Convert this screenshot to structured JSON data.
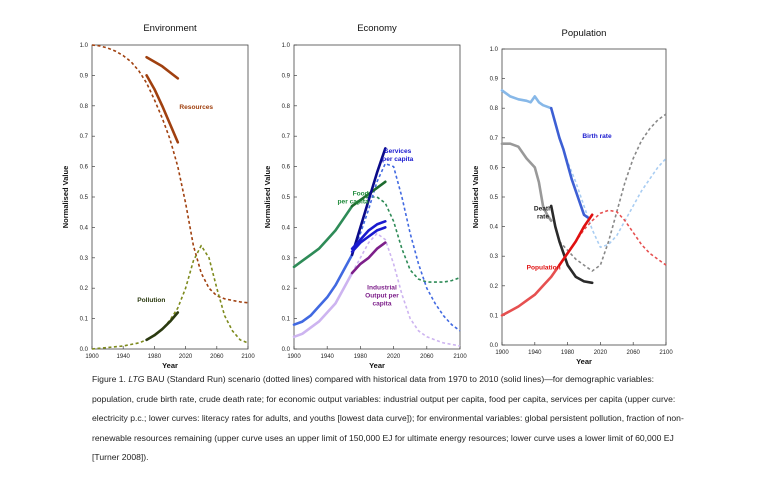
{
  "figure": {
    "caption_label": "Figure 1. ",
    "caption_italic": "LTG",
    "caption_text": " BAU (Standard Run) scenario (dotted lines) compared with historical data from 1970 to 2010 (solid lines)—for demographic variables: population, crude birth rate, crude death rate; for economic output variables:  industrial output per capita, food per capita, services per capita (upper curve: electricity p.c.; lower curves: literacy rates for adults, and youths [lowest data curve]); for environmental variables: global persistent pollution, fraction of non-renewable resources remaining (upper curve uses an upper limit of 150,000 EJ for ultimate energy resources; lower curve uses a lower limit of 60,000 EJ [Turner 2008])."
  },
  "chart_data": [
    {
      "type": "line",
      "title": "Environment",
      "xlabel": "Year",
      "ylabel": "Normalised Value",
      "xlim": [
        1900,
        2100
      ],
      "ylim": [
        0,
        1
      ],
      "xticks": [
        "1900",
        "1940",
        "1980",
        "2020",
        "2060",
        "2100"
      ],
      "yticks": [
        "0.0",
        "0.1",
        "0.2",
        "0.3",
        "0.4",
        "0.5",
        "0.6",
        "0.7",
        "0.8",
        "0.9",
        "1.0"
      ],
      "grid": false,
      "series": [
        {
          "name": "Resources",
          "style": "dotted",
          "color": "#a0400f",
          "x": [
            1900,
            1910,
            1920,
            1930,
            1940,
            1950,
            1960,
            1970,
            1980,
            1990,
            2000,
            2010,
            2020,
            2030,
            2040,
            2050,
            2060,
            2070,
            2080,
            2090,
            2100
          ],
          "y": [
            1.0,
            0.997,
            0.99,
            0.98,
            0.965,
            0.945,
            0.915,
            0.875,
            0.82,
            0.76,
            0.69,
            0.6,
            0.48,
            0.34,
            0.25,
            0.2,
            0.175,
            0.165,
            0.16,
            0.155,
            0.152
          ]
        },
        {
          "name": "",
          "style": "solid",
          "color": "#a0400f",
          "x": [
            1970,
            1980,
            1990,
            2000,
            2010
          ],
          "y": [
            0.96,
            0.945,
            0.93,
            0.91,
            0.89
          ]
        },
        {
          "name": "",
          "style": "solid",
          "color": "#a0400f",
          "x": [
            1970,
            1980,
            1990,
            2000,
            2010
          ],
          "y": [
            0.9,
            0.855,
            0.8,
            0.74,
            0.68
          ]
        },
        {
          "name": "Pollution",
          "style": "dotted",
          "color": "#7d8a1c",
          "x": [
            1900,
            1920,
            1940,
            1960,
            1970,
            1980,
            1990,
            2000,
            2010,
            2020,
            2030,
            2040,
            2050,
            2060,
            2070,
            2080,
            2090,
            2100
          ],
          "y": [
            0.0,
            0.005,
            0.01,
            0.02,
            0.03,
            0.045,
            0.065,
            0.095,
            0.135,
            0.2,
            0.29,
            0.34,
            0.3,
            0.2,
            0.11,
            0.06,
            0.03,
            0.02
          ]
        },
        {
          "name": "",
          "style": "solid",
          "color": "#2b3a10",
          "x": [
            1970,
            1980,
            1990,
            2000,
            2010
          ],
          "y": [
            0.03,
            0.045,
            0.065,
            0.09,
            0.12
          ]
        }
      ],
      "labels": [
        "Resources",
        "Pollution"
      ]
    },
    {
      "type": "line",
      "title": "Economy",
      "xlabel": "Year",
      "ylabel": "Normalised Value",
      "xlim": [
        1900,
        2100
      ],
      "ylim": [
        0,
        1
      ],
      "xticks": [
        "1900",
        "1940",
        "1980",
        "2020",
        "2060",
        "2100"
      ],
      "yticks": [
        "0.0",
        "0.1",
        "0.2",
        "0.3",
        "0.4",
        "0.5",
        "0.6",
        "0.7",
        "0.8",
        "0.9",
        "1.0"
      ],
      "grid": false,
      "series": [
        {
          "name": "Food per capita",
          "style": "solid",
          "color": "#2e8b57",
          "x": [
            1900,
            1910,
            1920,
            1930,
            1940,
            1950,
            1960,
            1970
          ],
          "y": [
            0.27,
            0.29,
            0.31,
            0.33,
            0.36,
            0.39,
            0.43,
            0.47
          ]
        },
        {
          "name": "",
          "style": "solid",
          "color": "#1e6b2e",
          "x": [
            1970,
            1980,
            1990,
            2000,
            2010
          ],
          "y": [
            0.47,
            0.49,
            0.51,
            0.53,
            0.55
          ]
        },
        {
          "name": "",
          "style": "dotted",
          "color": "#2e8b57",
          "x": [
            1970,
            1980,
            1990,
            2000,
            2010,
            2020,
            2030,
            2040,
            2050,
            2060,
            2070,
            2080,
            2090,
            2100
          ],
          "y": [
            0.47,
            0.49,
            0.5,
            0.5,
            0.48,
            0.42,
            0.33,
            0.26,
            0.23,
            0.22,
            0.22,
            0.22,
            0.225,
            0.235
          ]
        },
        {
          "name": "Services per capita",
          "style": "solid",
          "color": "#4169e1",
          "x": [
            1900,
            1910,
            1920,
            1930,
            1940,
            1950,
            1960,
            1970
          ],
          "y": [
            0.08,
            0.09,
            0.11,
            0.14,
            0.17,
            0.21,
            0.26,
            0.31
          ]
        },
        {
          "name": "",
          "style": "dotted",
          "color": "#4169e1",
          "x": [
            1970,
            1980,
            1990,
            2000,
            2010,
            2020,
            2030,
            2040,
            2050,
            2060,
            2070,
            2080,
            2090,
            2100
          ],
          "y": [
            0.31,
            0.38,
            0.46,
            0.55,
            0.61,
            0.6,
            0.5,
            0.38,
            0.28,
            0.2,
            0.15,
            0.11,
            0.08,
            0.06
          ]
        },
        {
          "name": "",
          "style": "solid",
          "color": "#0a0a8a",
          "x": [
            1970,
            1980,
            1990,
            2000,
            2010
          ],
          "y": [
            0.31,
            0.4,
            0.49,
            0.58,
            0.66
          ]
        },
        {
          "name": "",
          "style": "solid",
          "color": "#1a1acf",
          "x": [
            1970,
            1980,
            1990,
            2000,
            2010
          ],
          "y": [
            0.33,
            0.36,
            0.39,
            0.41,
            0.42
          ]
        },
        {
          "name": "",
          "style": "solid",
          "color": "#1a1acf",
          "x": [
            1970,
            1980,
            1990,
            2000,
            2010
          ],
          "y": [
            0.32,
            0.35,
            0.37,
            0.39,
            0.4
          ]
        },
        {
          "name": "Industrial Output per capita",
          "style": "solid",
          "color": "#cdb4f0",
          "x": [
            1900,
            1910,
            1920,
            1930,
            1940,
            1950,
            1960,
            1970
          ],
          "y": [
            0.04,
            0.05,
            0.07,
            0.09,
            0.12,
            0.15,
            0.2,
            0.25
          ]
        },
        {
          "name": "",
          "style": "dotted",
          "color": "#cdb4f0",
          "x": [
            1970,
            1980,
            1990,
            2000,
            2010,
            2020,
            2030,
            2040,
            2050,
            2060,
            2070,
            2080,
            2090,
            2100
          ],
          "y": [
            0.25,
            0.3,
            0.35,
            0.38,
            0.36,
            0.28,
            0.18,
            0.1,
            0.06,
            0.04,
            0.03,
            0.02,
            0.015,
            0.01
          ]
        },
        {
          "name": "",
          "style": "solid",
          "color": "#7d1f8a",
          "x": [
            1970,
            1980,
            1990,
            2000,
            2010
          ],
          "y": [
            0.25,
            0.28,
            0.3,
            0.33,
            0.35
          ]
        }
      ],
      "labels": [
        "Food per capita",
        "Services per capita",
        "Industrial Output per capita"
      ]
    },
    {
      "type": "line",
      "title": "Population",
      "xlabel": "Year",
      "ylabel": "Normalised Value",
      "xlim": [
        1900,
        2100
      ],
      "ylim": [
        0,
        1
      ],
      "xticks": [
        "1900",
        "1940",
        "1980",
        "2020",
        "2060",
        "2100"
      ],
      "yticks": [
        "0.0",
        "0.1",
        "0.2",
        "0.3",
        "0.4",
        "0.5",
        "0.6",
        "0.7",
        "0.8",
        "0.9",
        "1.0"
      ],
      "grid": false,
      "series": [
        {
          "name": "Birth rate",
          "style": "solid",
          "color": "#87b8e8",
          "x": [
            1900,
            1910,
            1920,
            1930,
            1935,
            1940,
            1945,
            1950,
            1960
          ],
          "y": [
            0.86,
            0.84,
            0.83,
            0.825,
            0.82,
            0.84,
            0.82,
            0.81,
            0.8
          ]
        },
        {
          "name": "",
          "style": "solid",
          "color": "#3d5fd4",
          "x": [
            1960,
            1965,
            1970,
            1975,
            1980,
            1985,
            1990,
            1995,
            2000,
            2005
          ],
          "y": [
            0.8,
            0.75,
            0.7,
            0.66,
            0.61,
            0.56,
            0.52,
            0.48,
            0.44,
            0.43
          ]
        },
        {
          "name": "",
          "style": "dotted",
          "color": "#a9cdf2",
          "x": [
            1970,
            1980,
            1990,
            2000,
            2010,
            2020,
            2030,
            2040,
            2050,
            2060,
            2070,
            2080,
            2090,
            2100
          ],
          "y": [
            0.7,
            0.62,
            0.55,
            0.47,
            0.39,
            0.33,
            0.34,
            0.37,
            0.42,
            0.47,
            0.52,
            0.56,
            0.6,
            0.63
          ]
        },
        {
          "name": "Death rate",
          "style": "solid",
          "color": "#999999",
          "x": [
            1900,
            1910,
            1920,
            1930,
            1940,
            1945,
            1950,
            1955,
            1960
          ],
          "y": [
            0.68,
            0.68,
            0.67,
            0.63,
            0.6,
            0.55,
            0.47,
            0.44,
            0.42
          ]
        },
        {
          "name": "",
          "style": "solid",
          "color": "#2a2a2a",
          "x": [
            1960,
            1965,
            1970,
            1975,
            1980,
            1990,
            2000,
            2010
          ],
          "y": [
            0.47,
            0.4,
            0.35,
            0.31,
            0.27,
            0.23,
            0.215,
            0.21
          ]
        },
        {
          "name": "",
          "style": "dotted",
          "color": "#888888",
          "x": [
            1970,
            1980,
            1990,
            2000,
            2010,
            2020,
            2030,
            2040,
            2050,
            2060,
            2070,
            2080,
            2090,
            2100
          ],
          "y": [
            0.35,
            0.32,
            0.29,
            0.27,
            0.25,
            0.27,
            0.35,
            0.45,
            0.55,
            0.63,
            0.69,
            0.73,
            0.76,
            0.78
          ]
        },
        {
          "name": "Population",
          "style": "solid",
          "color": "#e65050",
          "x": [
            1900,
            1910,
            1920,
            1930,
            1940,
            1950,
            1960,
            1970
          ],
          "y": [
            0.1,
            0.115,
            0.13,
            0.15,
            0.17,
            0.2,
            0.23,
            0.27
          ]
        },
        {
          "name": "",
          "style": "solid",
          "color": "#e01010",
          "x": [
            1970,
            1980,
            1990,
            2000,
            2010
          ],
          "y": [
            0.27,
            0.31,
            0.35,
            0.4,
            0.44
          ]
        },
        {
          "name": "",
          "style": "dotted",
          "color": "#e65050",
          "x": [
            1970,
            1980,
            1990,
            2000,
            2010,
            2020,
            2030,
            2040,
            2050,
            2060,
            2070,
            2080,
            2090,
            2100
          ],
          "y": [
            0.27,
            0.31,
            0.35,
            0.39,
            0.42,
            0.445,
            0.455,
            0.45,
            0.42,
            0.38,
            0.34,
            0.31,
            0.29,
            0.27
          ]
        }
      ],
      "labels": [
        "Birth rate",
        "Death rate",
        "Population"
      ]
    }
  ]
}
